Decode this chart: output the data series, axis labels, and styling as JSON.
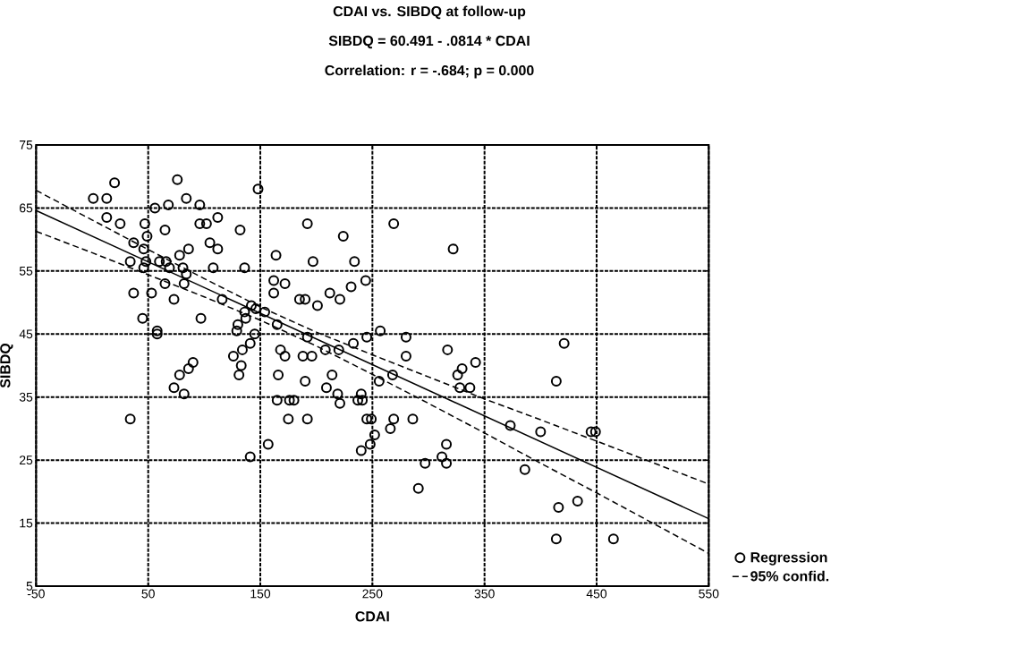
{
  "chart_data": {
    "type": "scatter",
    "title": "CDAI vs. SIBDQ at follow-up",
    "subtitle": "SIBDQ = 60.491 - .0814 * CDAI",
    "annotations": [
      "Correlation: r = -.684;  p = 0.000"
    ],
    "xlabel": "CDAI",
    "ylabel": "SIBDQ",
    "xlim": [
      -50,
      550
    ],
    "xticks": [
      -50,
      50,
      150,
      250,
      350,
      450,
      550
    ],
    "ylim": [
      5,
      75
    ],
    "yticks": [
      5,
      15,
      25,
      35,
      45,
      55,
      65,
      75
    ],
    "grid": true,
    "legend": "right",
    "marker": "circle",
    "series": [
      {
        "name": "Regression",
        "color": "#000000",
        "x": [
          20,
          76,
          1,
          13,
          84,
          68,
          56,
          96,
          13,
          25,
          47,
          65,
          96,
          102,
          112,
          49,
          37,
          105,
          112,
          46,
          86,
          34,
          48,
          60,
          66,
          78,
          46,
          69,
          81,
          108,
          84,
          65,
          82,
          37,
          53,
          73,
          45,
          97,
          58,
          58,
          90,
          86,
          78,
          73,
          82,
          34,
          148,
          132,
          192,
          224,
          269,
          164,
          197,
          234,
          322,
          136,
          162,
          172,
          162,
          185,
          190,
          201,
          212,
          221,
          231,
          244,
          116,
          142,
          136,
          146,
          154,
          165,
          130,
          137,
          129,
          145,
          141,
          134,
          126,
          133,
          131,
          168,
          172,
          188,
          196,
          192,
          208,
          220,
          233,
          245,
          257,
          280,
          280,
          317,
          166,
          190,
          214,
          209,
          219,
          221,
          240,
          237,
          241,
          256,
          268,
          165,
          176,
          180,
          175,
          192,
          245,
          249,
          269,
          266,
          286,
          252,
          248,
          240,
          157,
          141,
          316,
          312,
          316,
          297,
          291,
          342,
          330,
          326,
          328,
          337,
          421,
          414,
          373,
          400,
          445,
          449,
          386,
          433,
          416,
          414,
          465
        ],
        "values": [
          69,
          69.5,
          66.5,
          66.5,
          66.5,
          65.5,
          65,
          65.5,
          63.5,
          62.5,
          62.5,
          61.5,
          62.5,
          62.5,
          63.5,
          60.5,
          59.5,
          59.5,
          58.5,
          58.5,
          58.5,
          56.5,
          56.5,
          56.5,
          56.5,
          57.5,
          55.5,
          55.5,
          55.5,
          55.5,
          54.5,
          53,
          53,
          51.5,
          51.5,
          50.5,
          47.5,
          47.5,
          45.5,
          45,
          40.5,
          39.5,
          38.5,
          36.5,
          35.5,
          31.5,
          68,
          61.5,
          62.5,
          60.5,
          62.5,
          57.5,
          56.5,
          56.5,
          58.5,
          55.5,
          53.5,
          53,
          51.5,
          50.5,
          50.5,
          49.5,
          51.5,
          50.5,
          52.5,
          53.5,
          50.5,
          49.5,
          48.5,
          49,
          48.5,
          46.5,
          46.5,
          47.5,
          45.5,
          45,
          43.5,
          42.5,
          41.5,
          40,
          38.5,
          42.5,
          41.5,
          41.5,
          41.5,
          44.5,
          42.5,
          42.5,
          43.5,
          44.5,
          45.5,
          44.5,
          41.5,
          42.5,
          38.5,
          37.5,
          38.5,
          36.5,
          35.5,
          34,
          35.5,
          34.5,
          34.5,
          37.5,
          38.5,
          34.5,
          34.5,
          34.5,
          31.5,
          31.5,
          31.5,
          31.5,
          31.5,
          30,
          31.5,
          29,
          27.5,
          26.5,
          27.5,
          25.5,
          27.5,
          25.5,
          24.5,
          24.5,
          20.5,
          40.5,
          39.5,
          38.5,
          36.5,
          36.5,
          43.5,
          37.5,
          30.5,
          29.5,
          29.5,
          29.5,
          23.5,
          18.5,
          17.5,
          12.5,
          12.5
        ]
      },
      {
        "type": "line",
        "color": "#000000",
        "line_style": "solid",
        "marker": "none",
        "x": [
          -50,
          550
        ],
        "values": [
          64.6,
          15.7
        ]
      },
      {
        "name": "95% confid.",
        "type": "line",
        "color": "#000000",
        "line_style": "dashed",
        "marker": "none",
        "x": [
          -50,
          0,
          50,
          100,
          150,
          200,
          250,
          300,
          350,
          400,
          450,
          500,
          550
        ],
        "values": [
          67.8,
          63.1,
          58.4,
          53.8,
          49.3,
          45.3,
          41.7,
          38.2,
          34.7,
          31.4,
          28.0,
          24.6,
          21.2
        ]
      },
      {
        "type": "line",
        "color": "#000000",
        "line_style": "dashed",
        "marker": "none",
        "x": [
          -50,
          0,
          50,
          100,
          150,
          200,
          250,
          300,
          350,
          400,
          450,
          500,
          550
        ],
        "values": [
          61.3,
          57.9,
          54.4,
          50.9,
          47.2,
          43.1,
          38.6,
          34.0,
          29.3,
          24.5,
          19.8,
          15.0,
          10.2
        ]
      }
    ]
  }
}
